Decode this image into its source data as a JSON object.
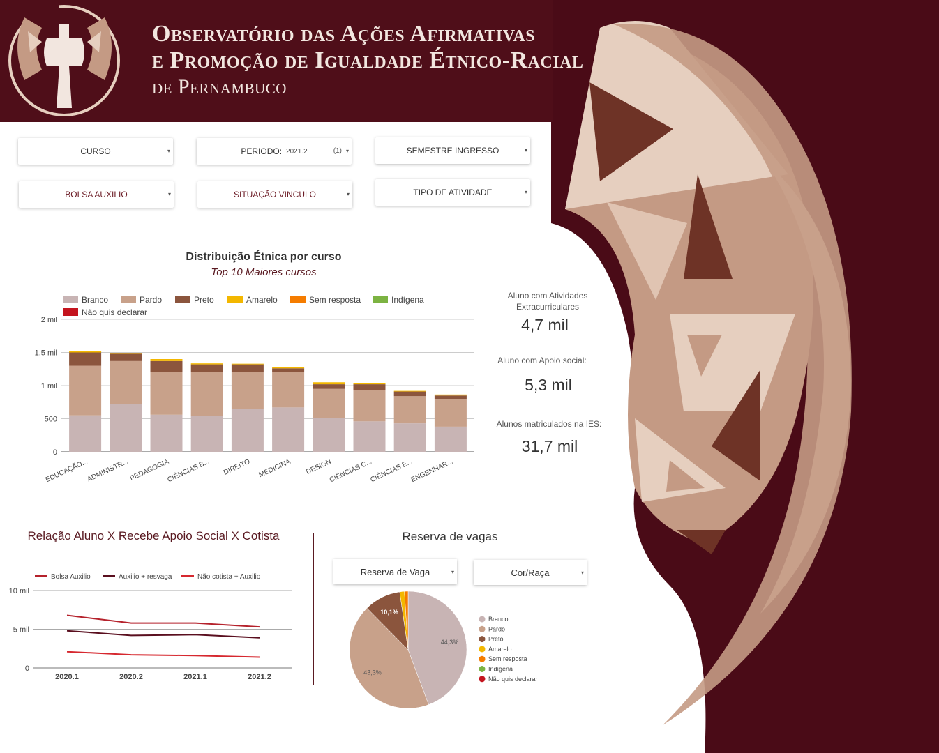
{
  "header": {
    "line1": "Observatório das Ações Afirmativas",
    "line2": "e Promoção de Igualdade Étnico-Racial",
    "line3": "de Pernambuco"
  },
  "filters": {
    "curso": "CURSO",
    "periodo": "PERIODO:",
    "periodo_value": "2021.2",
    "periodo_count": "(1)",
    "semestre": "SEMESTRE INGRESSO",
    "bolsa": "BOLSA AUXILIO",
    "situacao": "SITUAÇÃO VINCULO",
    "atividade": "TIPO DE ATIVIDADE"
  },
  "kpis": [
    {
      "label": "Aluno com Atividades Extracurriculares",
      "value": "4,7 mil"
    },
    {
      "label": "Aluno com Apoio social:",
      "value": "5,3 mil"
    },
    {
      "label": "Alunos matriculados na IES:",
      "value": "31,7 mil"
    }
  ],
  "reserva": {
    "title": "Reserva de vagas",
    "dropdown1": "Reserva de Vaga",
    "dropdown2": "Cor/Raça"
  },
  "chart_data": [
    {
      "type": "bar",
      "stacked": true,
      "title": "Distribuição Étnica por curso",
      "subtitle": "Top 10 Maiores cursos",
      "categories": [
        "EDUCAÇÃO...",
        "ADMINISTR...",
        "PEDAGOGIA",
        "CIÊNCIAS B...",
        "DIREITO",
        "MEDICINA",
        "DESIGN",
        "CIÊNCIAS C...",
        "CIÊNCIAS E...",
        "ENGENHAR..."
      ],
      "ylim": [
        0,
        2000
      ],
      "yticks": [
        0,
        500,
        1000,
        1500,
        2000
      ],
      "ytick_labels": [
        "0",
        "500",
        "1 mil",
        "1,5 mil",
        "2 mil"
      ],
      "legend_position": "top",
      "series": [
        {
          "name": "Branco",
          "color": "#c8b4b4",
          "values": [
            550,
            720,
            560,
            540,
            650,
            670,
            510,
            460,
            430,
            380
          ]
        },
        {
          "name": "Pardo",
          "color": "#c8a18a",
          "values": [
            750,
            650,
            640,
            670,
            560,
            540,
            440,
            470,
            410,
            420
          ]
        },
        {
          "name": "Preto",
          "color": "#8b553d",
          "values": [
            200,
            110,
            170,
            110,
            110,
            50,
            70,
            90,
            70,
            50
          ]
        },
        {
          "name": "Amarelo",
          "color": "#f3b700",
          "values": [
            20,
            10,
            30,
            15,
            10,
            15,
            30,
            20,
            10,
            15
          ]
        },
        {
          "name": "Sem resposta",
          "color": "#f57c00",
          "values": [
            0,
            0,
            0,
            0,
            0,
            0,
            0,
            0,
            0,
            0
          ]
        },
        {
          "name": "Indígena",
          "color": "#7cb342",
          "values": [
            0,
            0,
            0,
            0,
            0,
            0,
            0,
            0,
            0,
            0
          ]
        },
        {
          "name": "Não quis declarar",
          "color": "#c4141e",
          "values": [
            0,
            0,
            0,
            0,
            0,
            0,
            0,
            0,
            0,
            0
          ]
        }
      ]
    },
    {
      "type": "line",
      "title": "Relação Aluno X Recebe Apoio Social X Cotista",
      "x": [
        "2020.1",
        "2020.2",
        "2021.1",
        "2021.2"
      ],
      "ylim": [
        0,
        10000
      ],
      "yticks": [
        0,
        5000,
        10000
      ],
      "ytick_labels": [
        "0",
        "5 mil",
        "10 mil"
      ],
      "legend_position": "top",
      "series": [
        {
          "name": "Bolsa Auxilio",
          "color": "#b5222c",
          "values": [
            6800,
            5800,
            5800,
            5300
          ]
        },
        {
          "name": "Auxilio + resvaga",
          "color": "#5a0f1f",
          "values": [
            4800,
            4200,
            4300,
            3900
          ]
        },
        {
          "name": "Não cotista + Auxilio",
          "color": "#d6282f",
          "values": [
            2100,
            1700,
            1600,
            1400
          ]
        }
      ]
    },
    {
      "type": "pie",
      "legend_position": "right",
      "slices": [
        {
          "name": "Branco",
          "value": 44.3,
          "label": "44,3%",
          "color": "#c8b4b4"
        },
        {
          "name": "Pardo",
          "value": 43.3,
          "label": "43,3%",
          "color": "#c8a18a"
        },
        {
          "name": "Preto",
          "value": 10.1,
          "label": "10,1%",
          "color": "#8b553d"
        },
        {
          "name": "Amarelo",
          "value": 1.3,
          "label": "",
          "color": "#f3b700"
        },
        {
          "name": "Sem resposta",
          "value": 1.0,
          "label": "",
          "color": "#f57c00"
        },
        {
          "name": "Indígena",
          "value": 0,
          "label": "",
          "color": "#7cb342"
        },
        {
          "name": "Não quis declarar",
          "value": 0,
          "label": "",
          "color": "#c4141e"
        }
      ]
    }
  ]
}
